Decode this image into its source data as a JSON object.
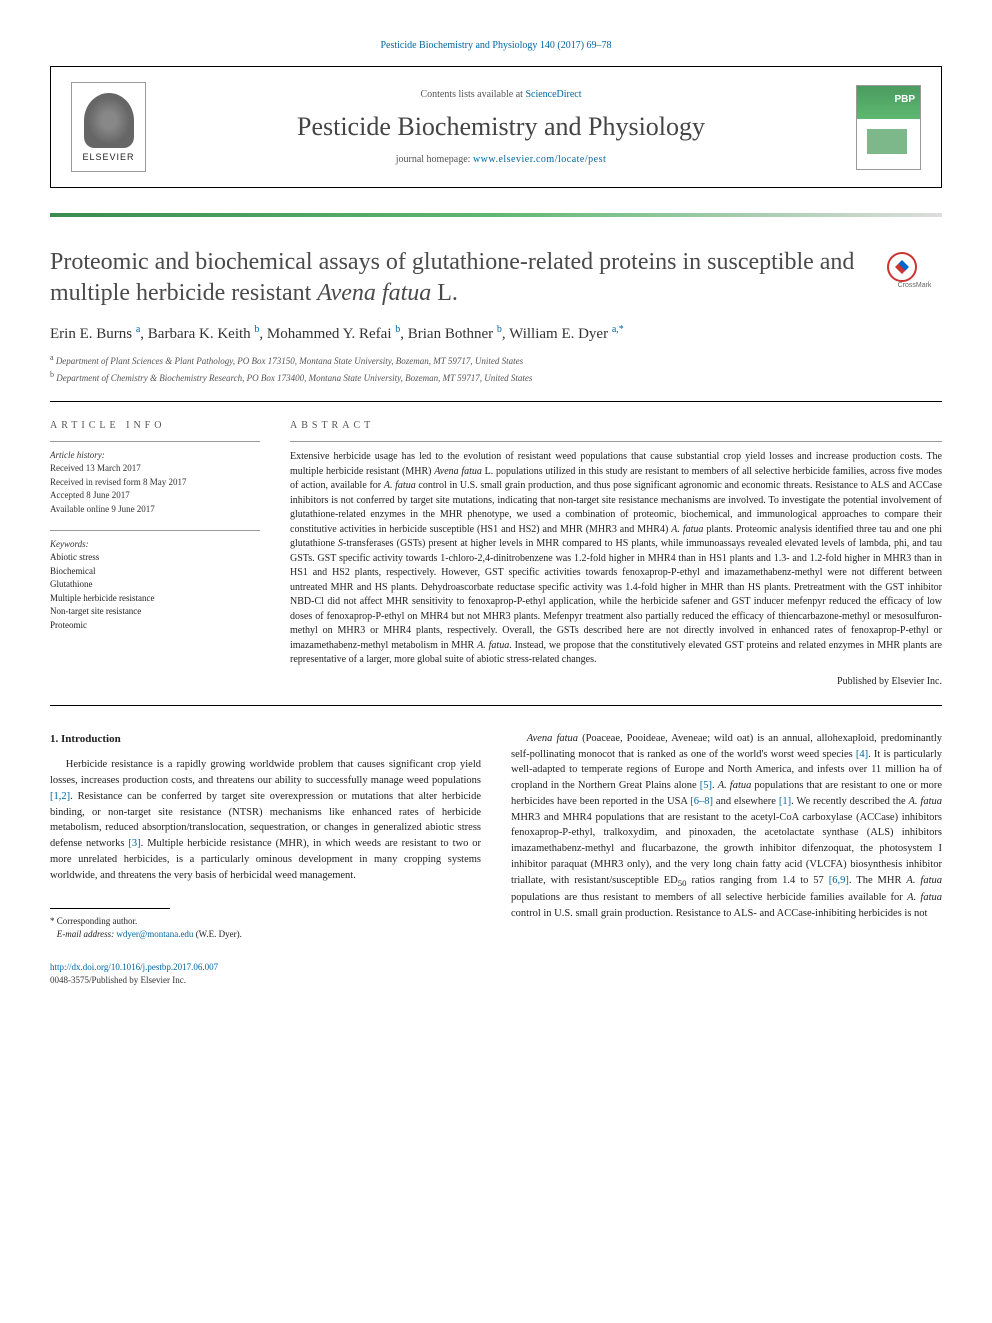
{
  "top_citation": "Pesticide Biochemistry and Physiology 140 (2017) 69–78",
  "header": {
    "contents_prefix": "Contents lists available at ",
    "contents_link": "ScienceDirect",
    "journal_name": "Pesticide Biochemistry and Physiology",
    "homepage_prefix": "journal homepage: ",
    "homepage_link": "www.elsevier.com/locate/pest",
    "elsevier_label": "ELSEVIER"
  },
  "crossmark_label": "CrossMark",
  "title_part1": "Proteomic and biochemical assays of glutathione-related proteins in susceptible and multiple herbicide resistant ",
  "title_italic": "Avena fatua",
  "title_part2": " L.",
  "authors_html": "Erin E. Burns <sup>a</sup>, Barbara K. Keith <sup>b</sup>, Mohammed Y. Refai <sup>b</sup>, Brian Bothner <sup>b</sup>, William E. Dyer <sup>a,*</sup>",
  "affiliations": [
    {
      "sup": "a",
      "text": "Department of Plant Sciences & Plant Pathology, PO Box 173150, Montana State University, Bozeman, MT 59717, United States"
    },
    {
      "sup": "b",
      "text": "Department of Chemistry & Biochemistry Research, PO Box 173400, Montana State University, Bozeman, MT 59717, United States"
    }
  ],
  "article_info": {
    "heading": "ARTICLE INFO",
    "history_label": "Article history:",
    "history": [
      "Received 13 March 2017",
      "Received in revised form 8 May 2017",
      "Accepted 8 June 2017",
      "Available online 9 June 2017"
    ],
    "keywords_label": "Keywords:",
    "keywords": [
      "Abiotic stress",
      "Biochemical",
      "Glutathione",
      "Multiple herbicide resistance",
      "Non-target site resistance",
      "Proteomic"
    ]
  },
  "abstract": {
    "heading": "ABSTRACT",
    "text": "Extensive herbicide usage has led to the evolution of resistant weed populations that cause substantial crop yield losses and increase production costs. The multiple herbicide resistant (MHR) <em>Avena fatua</em> L. populations utilized in this study are resistant to members of all selective herbicide families, across five modes of action, available for <em>A. fatua</em> control in U.S. small grain production, and thus pose significant agronomic and economic threats. Resistance to ALS and ACCase inhibitors is not conferred by target site mutations, indicating that non-target site resistance mechanisms are involved. To investigate the potential involvement of glutathione-related enzymes in the MHR phenotype, we used a combination of proteomic, biochemical, and immunological approaches to compare their constitutive activities in herbicide susceptible (HS1 and HS2) and MHR (MHR3 and MHR4) <em>A. fatua</em> plants. Proteomic analysis identified three tau and one phi glutathione <em>S</em>-transferases (GSTs) present at higher levels in MHR compared to HS plants, while immunoassays revealed elevated levels of lambda, phi, and tau GSTs. GST specific activity towards 1-chloro-2,4-dinitrobenzene was 1.2-fold higher in MHR4 than in HS1 plants and 1.3- and 1.2-fold higher in MHR3 than in HS1 and HS2 plants, respectively. However, GST specific activities towards fenoxaprop-P-ethyl and imazamethabenz-methyl were not different between untreated MHR and HS plants. Dehydroascorbate reductase specific activity was 1.4-fold higher in MHR than HS plants. Pretreatment with the GST inhibitor NBD-Cl did not affect MHR sensitivity to fenoxaprop-P-ethyl application, while the herbicide safener and GST inducer mefenpyr reduced the efficacy of low doses of fenoxaprop-P-ethyl on MHR4 but not MHR3 plants. Mefenpyr treatment also partially reduced the efficacy of thiencarbazone-methyl or mesosulfuron-methyl on MHR3 or MHR4 plants, respectively. Overall, the GSTs described here are not directly involved in enhanced rates of fenoxaprop-P-ethyl or imazamethabenz-methyl metabolism in MHR <em>A. fatua</em>. Instead, we propose that the constitutively elevated GST proteins and related enzymes in MHR plants are representative of a larger, more global suite of abiotic stress-related changes.",
    "publisher": "Published by Elsevier Inc."
  },
  "intro": {
    "heading": "1. Introduction",
    "col1_p1": "Herbicide resistance is a rapidly growing worldwide problem that causes significant crop yield losses, increases production costs, and threatens our ability to successfully manage weed populations <a href='#'>[1,2]</a>. Resistance can be conferred by target site overexpression or mutations that alter herbicide binding, or non-target site resistance (NTSR) mechanisms like enhanced rates of herbicide metabolism, reduced absorption/translocation, sequestration, or changes in generalized abiotic stress defense networks <a href='#'>[3]</a>. Multiple herbicide resistance (MHR), in which weeds are resistant to two or more unrelated herbicides, is a particularly ominous development in many cropping systems worldwide, and threatens the very basis of herbicidal weed management.",
    "col2_p1": "<em>Avena fatua</em> (Poaceae, Pooideae, Aveneae; wild oat) is an annual, allohexaploid, predominantly self-pollinating monocot that is ranked as one of the world's worst weed species <a href='#'>[4]</a>. It is particularly well-adapted to temperate regions of Europe and North America, and infests over 11 million ha of cropland in the Northern Great Plains alone <a href='#'>[5]</a>. <em>A. fatua</em> populations that are resistant to one or more herbicides have been reported in the USA <a href='#'>[6–8]</a> and elsewhere <a href='#'>[1]</a>. We recently described the <em>A. fatua</em> MHR3 and MHR4 populations that are resistant to the acetyl-CoA carboxylase (ACCase) inhibitors fenoxaprop-P-ethyl, tralkoxydim, and pinoxaden, the acetolactate synthase (ALS) inhibitors imazamethabenz-methyl and flucarbazone, the growth inhibitor difenzoquat, the photosystem I inhibitor paraquat (MHR3 only), and the very long chain fatty acid (VLCFA) biosynthesis inhibitor triallate, with resistant/susceptible ED<sub>50</sub> ratios ranging from 1.4 to 57 <a href='#'>[6,9]</a>. The MHR <em>A. fatua</em> populations are thus resistant to members of all selective herbicide families available for <em>A. fatua</em> control in U.S. small grain production. Resistance to ALS- and ACCase-inhibiting herbicides is not"
  },
  "footer": {
    "corresponding_label": "* Corresponding author.",
    "email_label": "E-mail address:",
    "email": "wdyer@montana.edu",
    "email_suffix": "(W.E. Dyer).",
    "doi": "http://dx.doi.org/10.1016/j.pestbp.2017.06.007",
    "copyright": "0048-3575/Published by Elsevier Inc."
  }
}
